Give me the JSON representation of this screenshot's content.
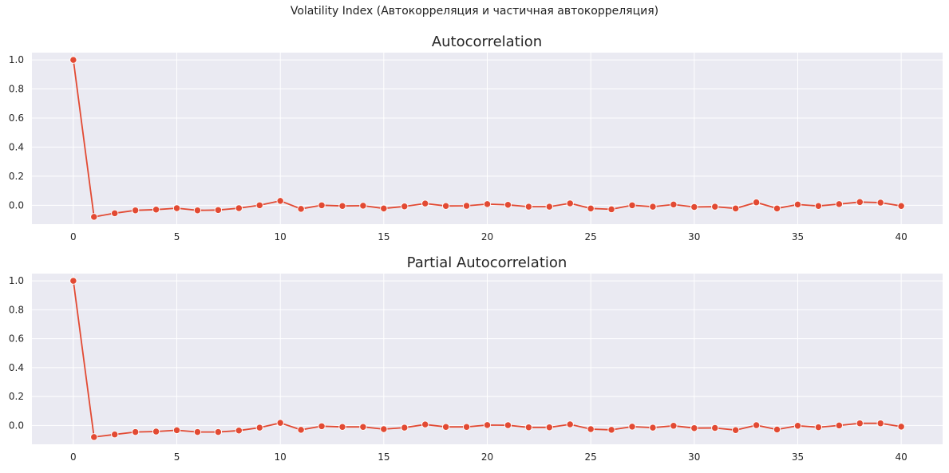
{
  "figure": {
    "suptitle": "Volatility Index (Автокорреляция и частичная автокорреляция)"
  },
  "colors": {
    "plot_background": "#eaeaf2",
    "grid": "#ffffff",
    "series": "#e24a33",
    "text": "#262626"
  },
  "chart_data": [
    {
      "type": "line",
      "title": "Autocorrelation",
      "xlabel": "",
      "ylabel": "",
      "x": [
        0,
        1,
        2,
        3,
        4,
        5,
        6,
        7,
        8,
        9,
        10,
        11,
        12,
        13,
        14,
        15,
        16,
        17,
        18,
        19,
        20,
        21,
        22,
        23,
        24,
        25,
        26,
        27,
        28,
        29,
        30,
        31,
        32,
        33,
        34,
        35,
        36,
        37,
        38,
        39,
        40
      ],
      "values": [
        1.0,
        -0.08,
        -0.055,
        -0.035,
        -0.03,
        -0.02,
        -0.035,
        -0.033,
        -0.02,
        0.0,
        0.03,
        -0.025,
        0.0,
        -0.005,
        -0.003,
        -0.022,
        -0.008,
        0.012,
        -0.005,
        -0.004,
        0.008,
        0.003,
        -0.01,
        -0.01,
        0.013,
        -0.022,
        -0.028,
        0.0,
        -0.01,
        0.005,
        -0.012,
        -0.01,
        -0.022,
        0.02,
        -0.022,
        0.005,
        -0.005,
        0.008,
        0.022,
        0.018,
        -0.005
      ],
      "xticks": [
        0,
        5,
        10,
        15,
        20,
        25,
        30,
        35,
        40
      ],
      "yticks": [
        0.0,
        0.2,
        0.4,
        0.6,
        0.8,
        1.0
      ],
      "ytick_labels": [
        "0.0",
        "0.2",
        "0.4",
        "0.6",
        "0.8",
        "1.0"
      ],
      "xlim": [
        -2,
        42
      ],
      "ylim": [
        -0.13,
        1.05
      ],
      "grid": true,
      "marker": "circle"
    },
    {
      "type": "line",
      "title": "Partial Autocorrelation",
      "xlabel": "",
      "ylabel": "",
      "x": [
        0,
        1,
        2,
        3,
        4,
        5,
        6,
        7,
        8,
        9,
        10,
        11,
        12,
        13,
        14,
        15,
        16,
        17,
        18,
        19,
        20,
        21,
        22,
        23,
        24,
        25,
        26,
        27,
        28,
        29,
        30,
        31,
        32,
        33,
        34,
        35,
        36,
        37,
        38,
        39,
        40
      ],
      "values": [
        1.0,
        -0.08,
        -0.062,
        -0.045,
        -0.042,
        -0.033,
        -0.045,
        -0.045,
        -0.035,
        -0.015,
        0.018,
        -0.03,
        -0.005,
        -0.01,
        -0.01,
        -0.025,
        -0.015,
        0.007,
        -0.01,
        -0.01,
        0.003,
        0.002,
        -0.013,
        -0.013,
        0.008,
        -0.025,
        -0.03,
        -0.008,
        -0.015,
        -0.002,
        -0.018,
        -0.017,
        -0.032,
        0.002,
        -0.028,
        -0.002,
        -0.012,
        0.0,
        0.015,
        0.015,
        -0.008
      ],
      "xticks": [
        0,
        5,
        10,
        15,
        20,
        25,
        30,
        35,
        40
      ],
      "yticks": [
        0.0,
        0.2,
        0.4,
        0.6,
        0.8,
        1.0
      ],
      "ytick_labels": [
        "0.0",
        "0.2",
        "0.4",
        "0.6",
        "0.8",
        "1.0"
      ],
      "xlim": [
        -2,
        42
      ],
      "ylim": [
        -0.13,
        1.05
      ],
      "grid": true,
      "marker": "circle"
    }
  ]
}
